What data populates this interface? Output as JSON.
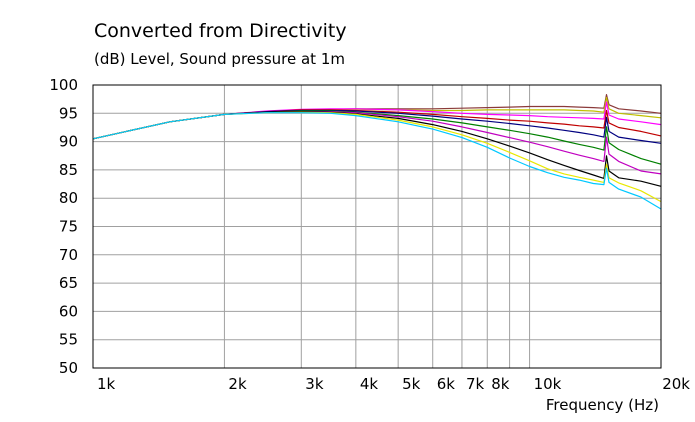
{
  "title": "Converted from Directivity",
  "subtitle": "(dB)  Level, Sound pressure at 1m",
  "chart_data": {
    "type": "line",
    "title": "Converted from Directivity",
    "subtitle": "(dB)  Level, Sound pressure at 1m",
    "xlabel": "Frequency  (Hz)",
    "ylabel": "",
    "x_scale": "log",
    "xlim": [
      1000,
      20000
    ],
    "ylim": [
      50,
      100
    ],
    "x_ticks": [
      {
        "value": 1000,
        "label": "1k"
      },
      {
        "value": 2000,
        "label": "2k"
      },
      {
        "value": 3000,
        "label": "3k"
      },
      {
        "value": 4000,
        "label": "4k"
      },
      {
        "value": 5000,
        "label": "5k"
      },
      {
        "value": 6000,
        "label": "6k"
      },
      {
        "value": 7000,
        "label": "7k"
      },
      {
        "value": 8000,
        "label": "8k"
      },
      {
        "value": 10000,
        "label": "10k"
      },
      {
        "value": 20000,
        "label": "20k"
      }
    ],
    "x_grid": [
      2000,
      3000,
      4000,
      5000,
      6000,
      7000,
      8000,
      9000,
      10000
    ],
    "y_ticks": [
      100,
      95,
      90,
      85,
      80,
      75,
      70,
      65,
      60,
      55,
      50
    ],
    "grid": true,
    "x": [
      1000,
      1500,
      2000,
      2500,
      3000,
      3500,
      4000,
      5000,
      6000,
      7000,
      8000,
      9000,
      10000,
      11000,
      12000,
      13000,
      14000,
      14800,
      15000,
      15200,
      16000,
      18000,
      20000
    ],
    "series": [
      {
        "color": "#8b3a3a",
        "values": [
          90.5,
          93.5,
          94.8,
          95.3,
          95.6,
          95.7,
          95.8,
          95.8,
          95.8,
          95.9,
          96.0,
          96.1,
          96.2,
          96.2,
          96.2,
          96.1,
          96.0,
          95.9,
          98.3,
          96.5,
          95.8,
          95.4,
          95.0
        ]
      },
      {
        "color": "#c0c000",
        "values": [
          90.5,
          93.5,
          94.8,
          95.3,
          95.6,
          95.7,
          95.7,
          95.6,
          95.5,
          95.5,
          95.6,
          95.6,
          95.6,
          95.6,
          95.6,
          95.5,
          95.4,
          95.2,
          97.8,
          95.8,
          95.0,
          94.6,
          94.2
        ]
      },
      {
        "color": "#ff00ff",
        "values": [
          90.5,
          93.5,
          94.8,
          95.4,
          95.7,
          95.8,
          95.8,
          95.6,
          95.3,
          95.0,
          94.8,
          94.7,
          94.6,
          94.4,
          94.3,
          94.2,
          94.1,
          94.0,
          97.0,
          94.7,
          94.0,
          93.5,
          93.0
        ]
      },
      {
        "color": "#c00000",
        "values": [
          90.5,
          93.5,
          94.8,
          95.3,
          95.6,
          95.6,
          95.5,
          95.2,
          94.8,
          94.4,
          94.1,
          93.8,
          93.6,
          93.3,
          93.1,
          92.8,
          92.6,
          92.4,
          95.5,
          93.3,
          92.5,
          91.8,
          91.0
        ]
      },
      {
        "color": "#000080",
        "values": [
          90.5,
          93.5,
          94.8,
          95.3,
          95.5,
          95.5,
          95.4,
          95.0,
          94.5,
          94.0,
          93.6,
          93.2,
          92.8,
          92.4,
          92.0,
          91.6,
          91.2,
          90.8,
          94.3,
          91.8,
          90.8,
          90.2,
          89.7
        ]
      },
      {
        "color": "#008000",
        "values": [
          90.5,
          93.5,
          94.8,
          95.2,
          95.4,
          95.4,
          95.2,
          94.6,
          94.0,
          93.3,
          92.6,
          92.0,
          91.4,
          90.8,
          90.1,
          89.5,
          89.0,
          88.5,
          92.6,
          89.8,
          88.6,
          87.0,
          86.0
        ]
      },
      {
        "color": "#c000c0",
        "values": [
          90.5,
          93.5,
          94.8,
          95.2,
          95.3,
          95.3,
          95.1,
          94.4,
          93.6,
          92.6,
          91.6,
          90.7,
          89.9,
          89.1,
          88.3,
          87.6,
          87.0,
          86.5,
          90.8,
          87.8,
          86.5,
          84.8,
          84.3
        ]
      },
      {
        "color": "#000000",
        "values": [
          90.5,
          93.5,
          94.8,
          95.2,
          95.3,
          95.2,
          94.9,
          94.1,
          93.0,
          91.8,
          90.5,
          89.2,
          88.0,
          86.8,
          85.8,
          84.9,
          84.1,
          83.5,
          87.5,
          84.8,
          83.6,
          83.0,
          82.1
        ]
      },
      {
        "color": "#e8e800",
        "values": [
          90.5,
          93.5,
          94.8,
          95.1,
          95.2,
          95.1,
          94.8,
          93.8,
          92.6,
          91.2,
          89.7,
          88.1,
          86.6,
          85.2,
          84.3,
          83.7,
          83.2,
          82.8,
          86.0,
          83.6,
          82.7,
          81.3,
          79.4
        ]
      },
      {
        "color": "#00c8ff",
        "values": [
          90.5,
          93.5,
          94.8,
          95.1,
          95.1,
          95.0,
          94.6,
          93.5,
          92.2,
          90.7,
          89.0,
          87.1,
          85.6,
          84.5,
          83.7,
          83.2,
          82.6,
          82.4,
          85.3,
          82.8,
          81.6,
          80.2,
          78.1
        ]
      }
    ]
  }
}
